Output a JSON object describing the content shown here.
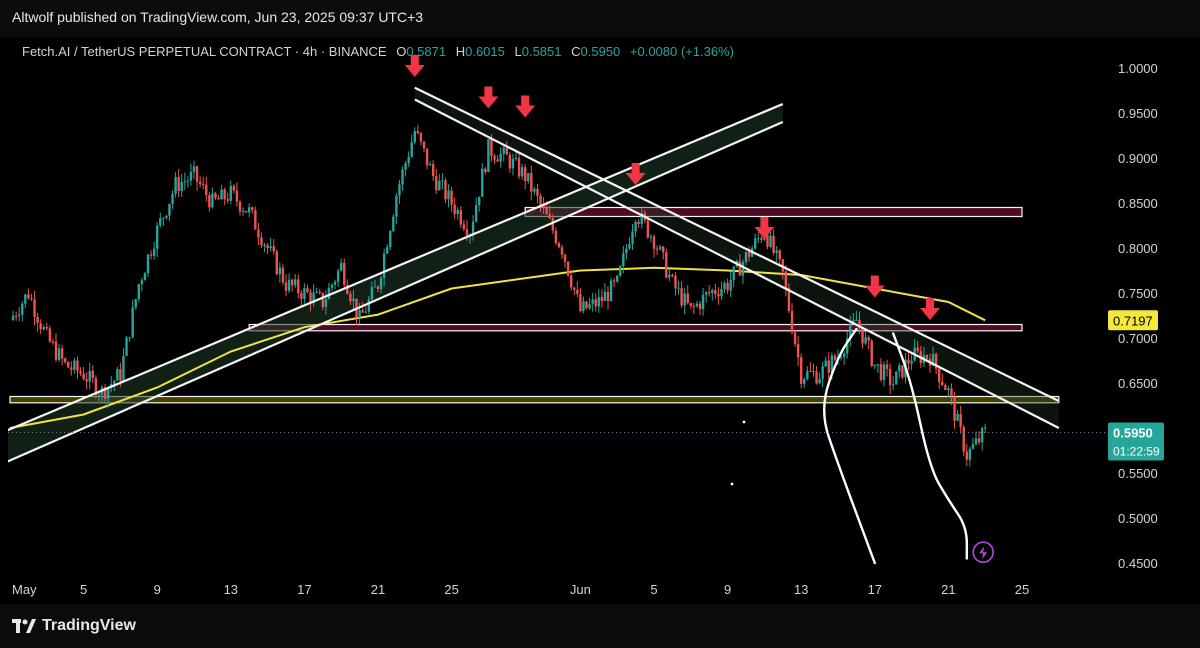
{
  "header": {
    "publish_text": "Altwolf published on TradingView.com, Jun 23, 2025 09:37 UTC+3"
  },
  "legend": {
    "symbol": "Fetch.AI / TetherUS PERPETUAL CONTRACT · 4h · BINANCE",
    "open_label": "O",
    "open": "0.5871",
    "high_label": "H",
    "high": "0.6015",
    "low_label": "L",
    "low": "0.5851",
    "close_label": "C",
    "close": "0.5950",
    "change": "+0.0080 (+1.36%)"
  },
  "footer": {
    "brand": "TradingView"
  },
  "badges": {
    "ma_value": "0.7197",
    "last_price": "0.5950",
    "countdown": "01:22:59"
  },
  "colors": {
    "up": "#26a69a",
    "down": "#ef5350",
    "ma": "#f0e442",
    "zone_red": "#e91e63",
    "zone_yellow": "#c8b400",
    "arrow": "#f23645",
    "bg": "#000000"
  },
  "chart_data": {
    "type": "candlestick",
    "timeframe": "4h",
    "ylim": [
      0.45,
      1.0
    ],
    "y_ticks": [
      "1.0000",
      "0.9500",
      "0.9000",
      "0.8500",
      "0.8000",
      "0.7500",
      "0.7000",
      "0.6500",
      "0.6000",
      "0.5500",
      "0.5000",
      "0.4500"
    ],
    "x_ticks": [
      "May",
      "5",
      "9",
      "13",
      "17",
      "21",
      "25",
      "Jun",
      "5",
      "9",
      "13",
      "17",
      "21",
      "25"
    ],
    "x_tick_dates": [
      "2025-05-01",
      "2025-05-05",
      "2025-05-09",
      "2025-05-13",
      "2025-05-17",
      "2025-05-21",
      "2025-05-25",
      "2025-06-01",
      "2025-06-05",
      "2025-06-09",
      "2025-06-13",
      "2025-06-17",
      "2025-06-21",
      "2025-06-25"
    ],
    "close_path": [
      [
        "2025-05-01",
        0.72
      ],
      [
        "2025-05-02",
        0.75
      ],
      [
        "2025-05-03",
        0.7
      ],
      [
        "2025-05-04",
        0.67
      ],
      [
        "2025-05-05",
        0.66
      ],
      [
        "2025-05-06",
        0.64
      ],
      [
        "2025-05-07",
        0.66
      ],
      [
        "2025-05-08",
        0.76
      ],
      [
        "2025-05-09",
        0.82
      ],
      [
        "2025-05-10",
        0.87
      ],
      [
        "2025-05-11",
        0.88
      ],
      [
        "2025-05-12",
        0.85
      ],
      [
        "2025-05-13",
        0.86
      ],
      [
        "2025-05-14",
        0.84
      ],
      [
        "2025-05-15",
        0.8
      ],
      [
        "2025-05-16",
        0.76
      ],
      [
        "2025-05-17",
        0.75
      ],
      [
        "2025-05-18",
        0.74
      ],
      [
        "2025-05-19",
        0.78
      ],
      [
        "2025-05-20",
        0.72
      ],
      [
        "2025-05-21",
        0.76
      ],
      [
        "2025-05-22",
        0.86
      ],
      [
        "2025-05-23",
        0.93
      ],
      [
        "2025-05-24",
        0.88
      ],
      [
        "2025-05-25",
        0.85
      ],
      [
        "2025-05-26",
        0.82
      ],
      [
        "2025-05-27",
        0.91
      ],
      [
        "2025-05-28",
        0.9
      ],
      [
        "2025-05-29",
        0.88
      ],
      [
        "2025-05-30",
        0.84
      ],
      [
        "2025-05-31",
        0.8
      ],
      [
        "2025-06-01",
        0.73
      ],
      [
        "2025-06-02",
        0.74
      ],
      [
        "2025-06-03",
        0.76
      ],
      [
        "2025-06-04",
        0.84
      ],
      [
        "2025-06-05",
        0.81
      ],
      [
        "2025-06-06",
        0.76
      ],
      [
        "2025-06-07",
        0.73
      ],
      [
        "2025-06-08",
        0.75
      ],
      [
        "2025-06-09",
        0.76
      ],
      [
        "2025-06-10",
        0.79
      ],
      [
        "2025-06-11",
        0.82
      ],
      [
        "2025-06-12",
        0.77
      ],
      [
        "2025-06-13",
        0.66
      ],
      [
        "2025-06-14",
        0.66
      ],
      [
        "2025-06-15",
        0.68
      ],
      [
        "2025-06-16",
        0.72
      ],
      [
        "2025-06-17",
        0.67
      ],
      [
        "2025-06-18",
        0.65
      ],
      [
        "2025-06-19",
        0.68
      ],
      [
        "2025-06-20",
        0.68
      ],
      [
        "2025-06-21",
        0.64
      ],
      [
        "2025-06-22",
        0.57
      ],
      [
        "2025-06-23",
        0.595
      ]
    ],
    "moving_average": [
      [
        "2025-05-01",
        0.6
      ],
      [
        "2025-05-05",
        0.615
      ],
      [
        "2025-05-09",
        0.645
      ],
      [
        "2025-05-13",
        0.685
      ],
      [
        "2025-05-17",
        0.712
      ],
      [
        "2025-05-21",
        0.726
      ],
      [
        "2025-05-25",
        0.755
      ],
      [
        "2025-06-01",
        0.775
      ],
      [
        "2025-06-05",
        0.778
      ],
      [
        "2025-06-09",
        0.775
      ],
      [
        "2025-06-13",
        0.77
      ],
      [
        "2025-06-17",
        0.755
      ],
      [
        "2025-06-21",
        0.74
      ],
      [
        "2025-06-23",
        0.7197
      ]
    ],
    "horizontal_zones": [
      {
        "from": "2025-05-29",
        "to": "2025-06-25",
        "y_top": 0.845,
        "y_bottom": 0.835,
        "color": "zone_red"
      },
      {
        "from": "2025-05-14",
        "to": "2025-06-25",
        "y_top": 0.715,
        "y_bottom": 0.708,
        "color": "zone_red"
      },
      {
        "from": "2025-05-01",
        "to": "2025-06-27",
        "y_top": 0.635,
        "y_bottom": 0.628,
        "color": "zone_yellow"
      }
    ],
    "trendlines": [
      {
        "kind": "descending_channel_upper",
        "from": [
          "2025-05-23",
          0.978
        ],
        "to": [
          "2025-06-27",
          0.63
        ]
      },
      {
        "kind": "descending_channel_lower",
        "from": [
          "2025-05-23",
          0.965
        ],
        "to": [
          "2025-06-27",
          0.6
        ]
      },
      {
        "kind": "ascending_channel_upper",
        "from": [
          "2025-04-30",
          0.59
        ],
        "to": [
          "2025-06-12",
          0.96
        ]
      },
      {
        "kind": "ascending_channel_lower",
        "from": [
          "2025-04-30",
          0.555
        ],
        "to": [
          "2025-06-12",
          0.94
        ]
      }
    ],
    "sell_arrows": [
      [
        "2025-05-23",
        0.99
      ],
      [
        "2025-05-27",
        0.955
      ],
      [
        "2025-05-29",
        0.945
      ],
      [
        "2025-06-04",
        0.87
      ],
      [
        "2025-06-11",
        0.81
      ],
      [
        "2025-06-17",
        0.745
      ],
      [
        "2025-06-20",
        0.72
      ]
    ],
    "projection_paths": [
      [
        [
          "2025-06-16",
          0.71
        ],
        [
          "2025-06-15",
          0.68
        ],
        [
          "2025-06-14",
          0.62
        ],
        [
          "2025-06-15",
          0.56
        ],
        [
          "2025-06-17",
          0.45
        ]
      ],
      [
        [
          "2025-06-18",
          0.705
        ],
        [
          "2025-06-19",
          0.65
        ],
        [
          "2025-06-20",
          0.555
        ],
        [
          "2025-06-21",
          0.52
        ],
        [
          "2025-06-22",
          0.49
        ],
        [
          "2025-06-22",
          0.455
        ]
      ]
    ],
    "last_price": 0.595,
    "ma_last": 0.7197
  }
}
